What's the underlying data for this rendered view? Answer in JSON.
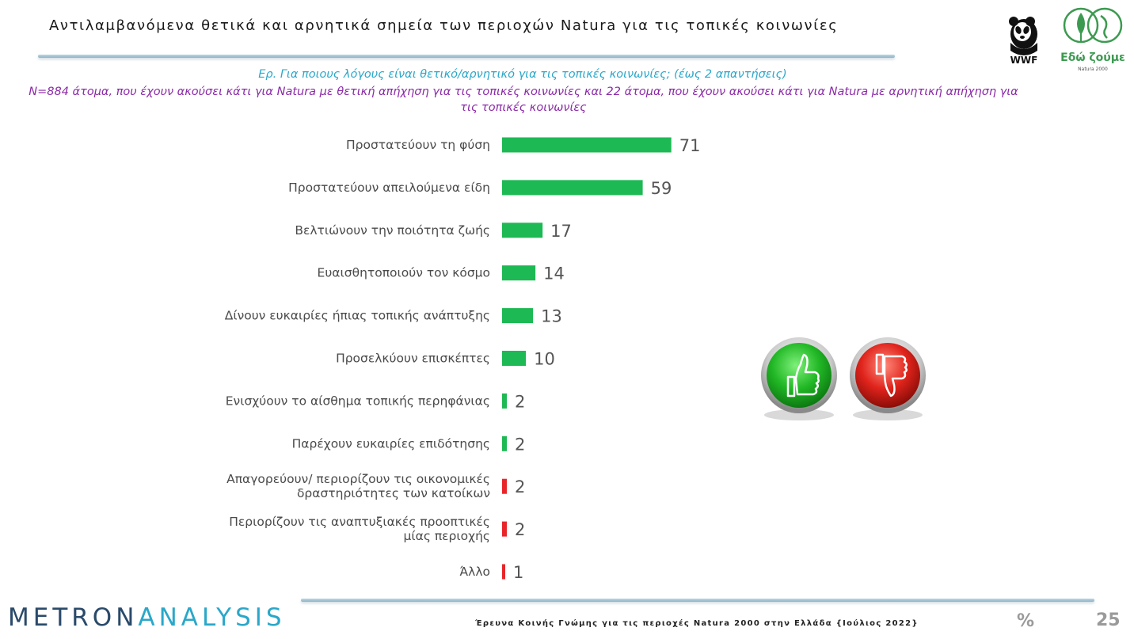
{
  "slide": {
    "title": "Αντιλαμβανόμενα θετικά και αρνητικά σημεία των περιοχών Natura για τις τοπικές κοινωνίες",
    "question": "Ερ. Για ποιους λόγους είναι θετικό/αρνητικό για τις τοπικές κοινωνίες; (έως 2 απαντήσεις)",
    "base": "N=884 άτομα, που έχουν ακούσει κάτι για Natura με θετική απήχηση για τις τοπικές κοινωνίες και 22 άτομα, που έχουν ακούσει κάτι για Natura με αρνητική απήχηση για τις τοπικές κοινωνίες"
  },
  "logos": {
    "wwf_text": "WWF",
    "edo_text": "Εδώ ζούμε",
    "edo_sub": "Natura 2000"
  },
  "icons": {
    "positive": "thumbs-up-icon",
    "negative": "thumbs-down-icon"
  },
  "colors": {
    "positive": "#1db954",
    "negative": "#e8262a",
    "brand_dark": "#2a4a6a",
    "brand_light": "#2aa7c9"
  },
  "chart_data": {
    "type": "bar",
    "orientation": "horizontal",
    "categories": [
      "Προστατεύουν τη φύση",
      "Προστατεύουν απειλούμενα είδη",
      "Βελτιώνουν την ποιότητα ζωής",
      "Ευαισθητοποιούν τον κόσμο",
      "Δίνουν ευκαιρίες ήπιας τοπικής ανάπτυξης",
      "Προσελκύουν επισκέπτες",
      "Ενισχύουν το αίσθημα τοπικής περηφάνιας",
      "Παρέχουν ευκαιρίες επιδότησης",
      "Απαγορεύουν/ περιορίζουν τις οικονομικές δραστηριότητες των κατοίκων",
      "Περιορίζουν τις αναπτυξιακές προοπτικές μίας περιοχής",
      "Άλλο"
    ],
    "values": [
      71,
      59,
      17,
      14,
      13,
      10,
      2,
      2,
      2,
      2,
      1
    ],
    "polarity": [
      "positive",
      "positive",
      "positive",
      "positive",
      "positive",
      "positive",
      "positive",
      "positive",
      "negative",
      "negative",
      "negative"
    ],
    "title": "",
    "xlabel": "",
    "ylabel": "",
    "legend": "none",
    "grid": false
  },
  "footer": {
    "brand_first": "METRON",
    "brand_rest": "ANALYSIS",
    "text": "Έρευνα Κοινής Γνώμης για τις περιοχές Natura 2000 στην Ελλάδα {Ιούλιος 2022}",
    "percent_symbol": "%",
    "page_number": "25"
  }
}
